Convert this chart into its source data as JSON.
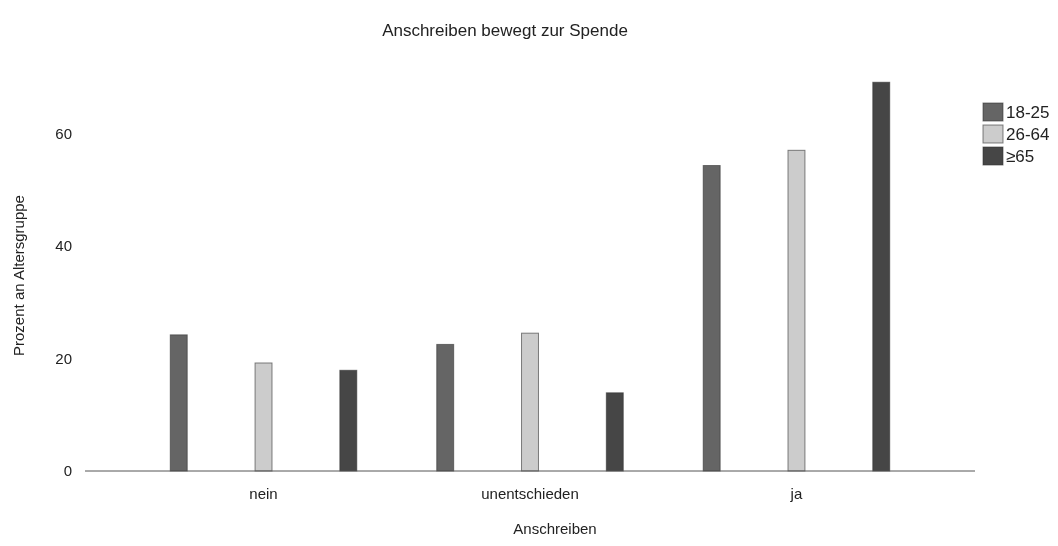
{
  "chart_data": {
    "type": "bar",
    "title": "Anschreiben bewegt zur Spende",
    "xlabel": "Anschreiben",
    "ylabel": "Prozent an Altersgruppe",
    "categories": [
      "nein",
      "unentschieden",
      "ja"
    ],
    "series": [
      {
        "name": "18-25",
        "color": "#656565",
        "values": [
          24.2,
          22.5,
          54.3
        ]
      },
      {
        "name": "26-64",
        "color": "#cccccc",
        "values": [
          19.2,
          24.5,
          57.0
        ]
      },
      {
        "name": "≥65",
        "color": "#464646",
        "values": [
          17.9,
          13.9,
          69.1
        ]
      }
    ],
    "ylim": [
      0,
      69.5
    ],
    "yticks": [
      0,
      20,
      40,
      60
    ],
    "grid": false,
    "legend": "top right"
  }
}
